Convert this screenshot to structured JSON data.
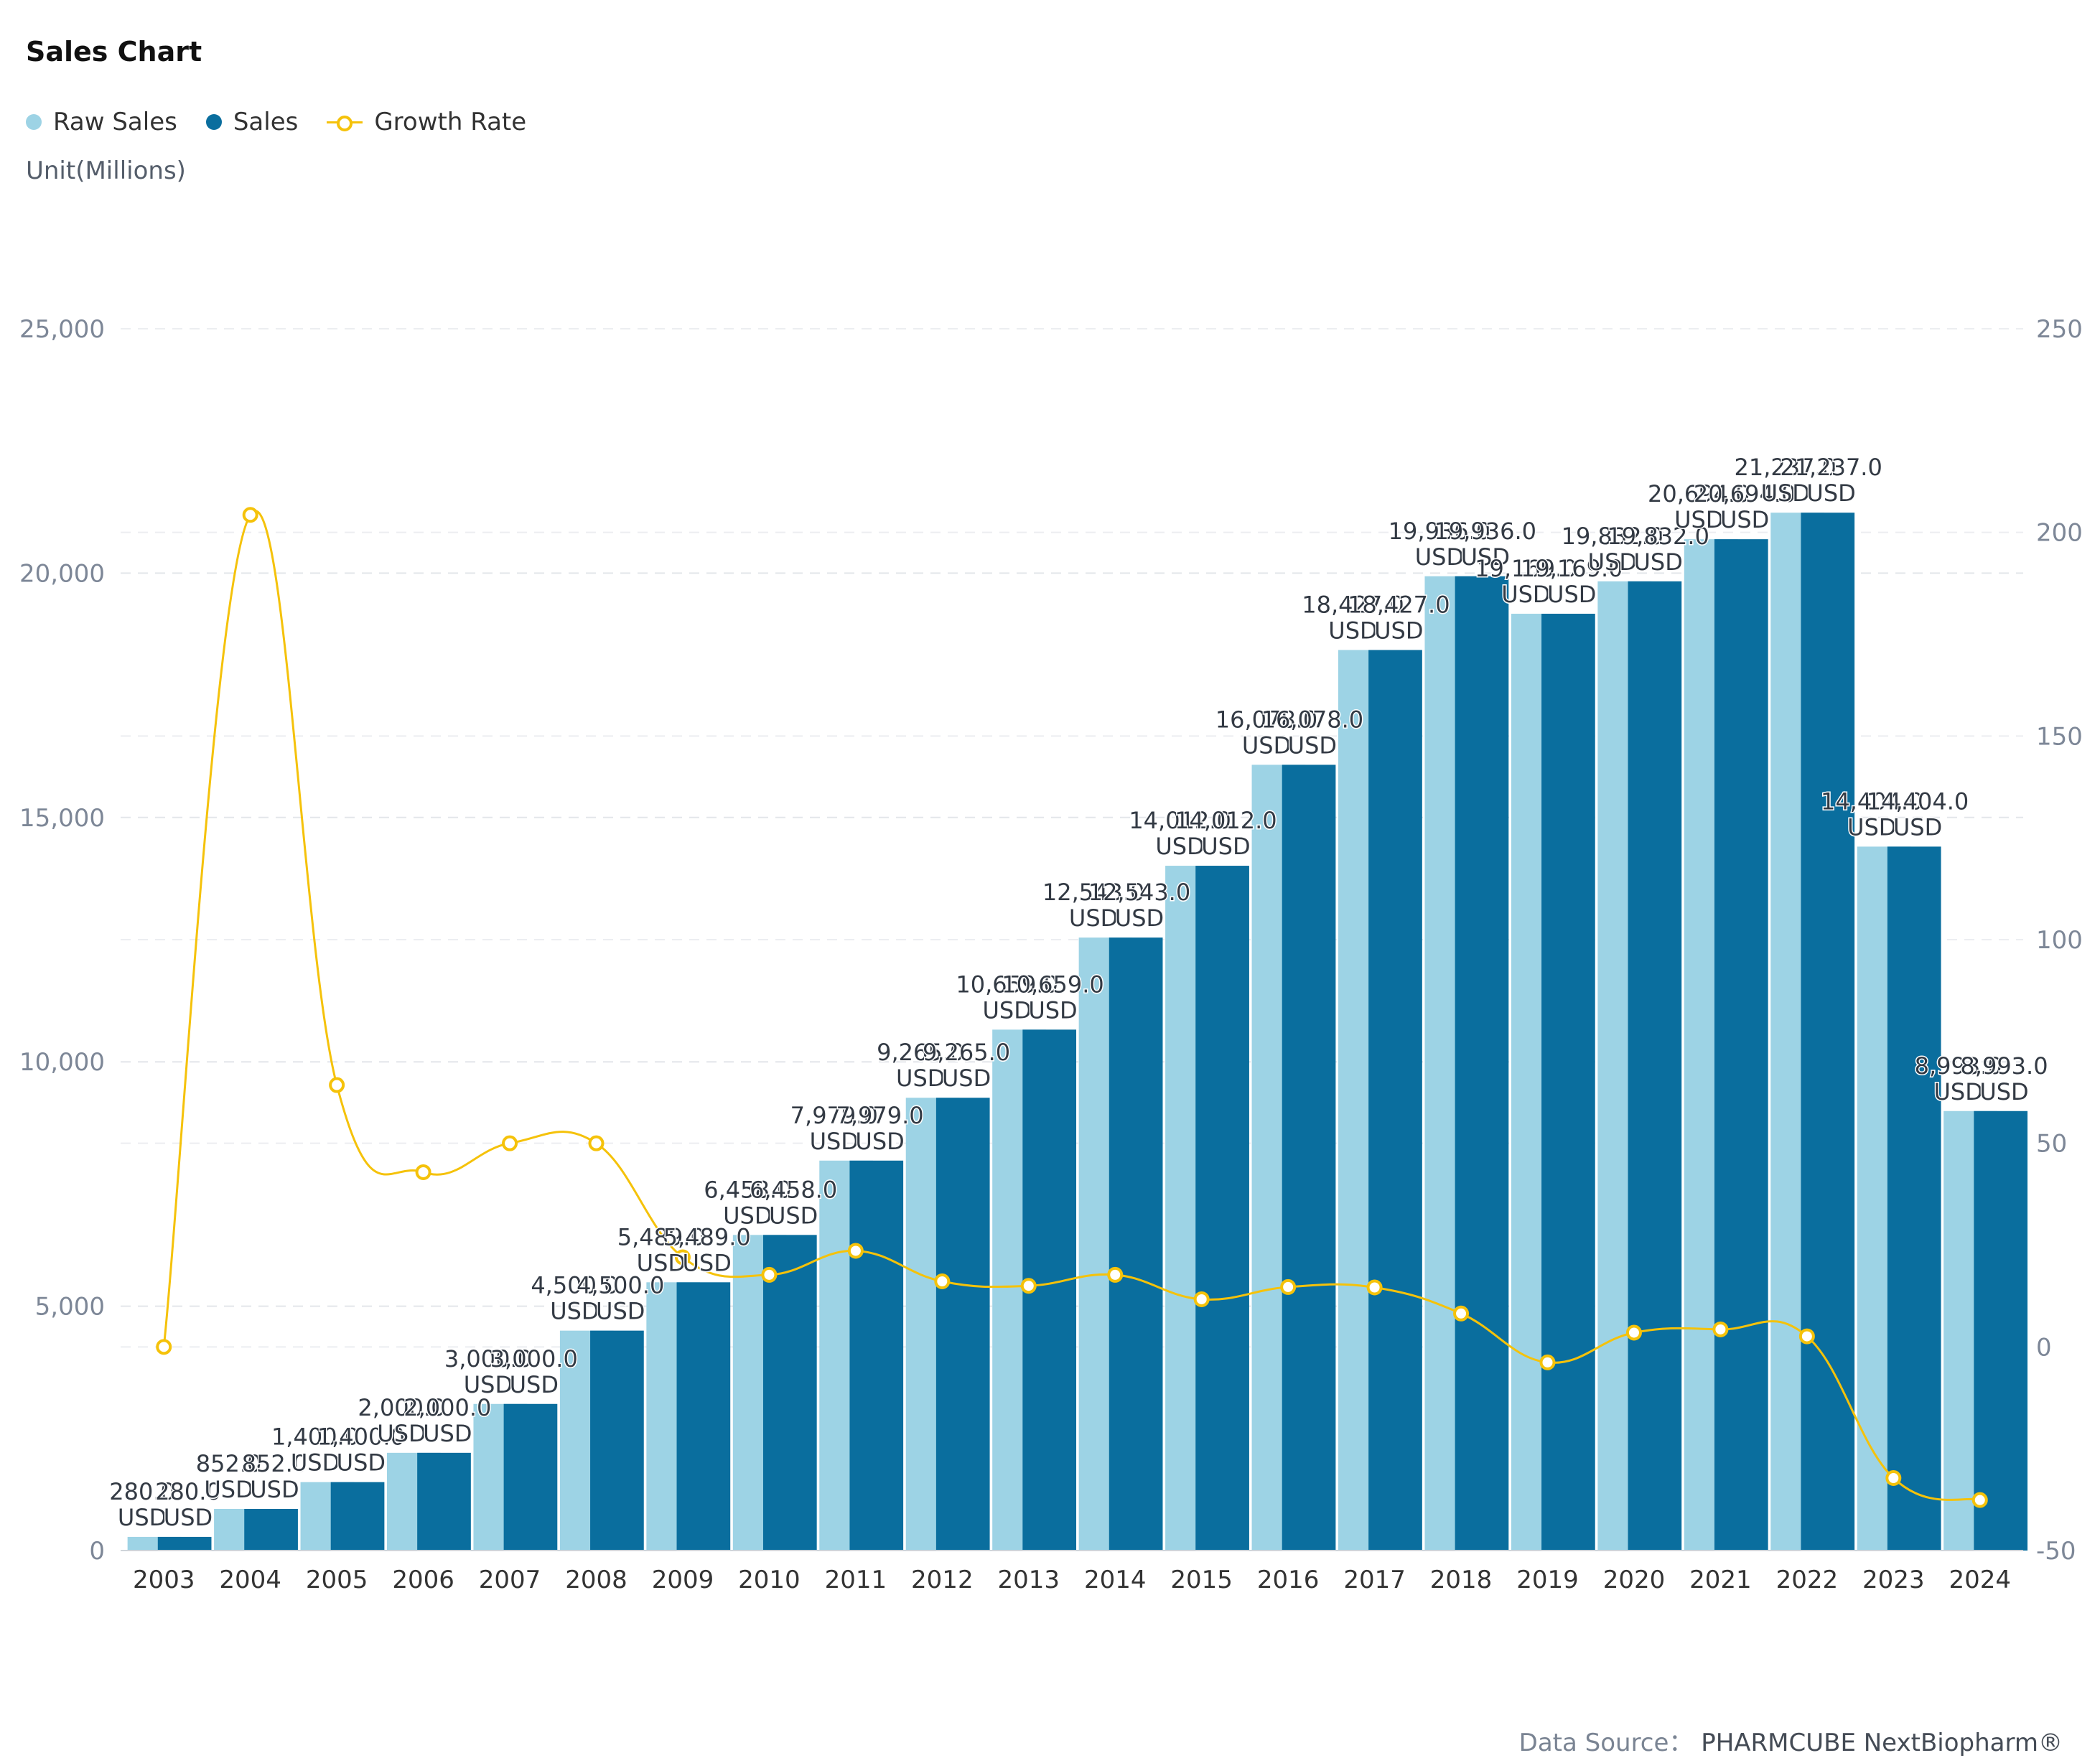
{
  "title": "Sales Chart",
  "unit_label": "Unit(Millions)",
  "legend": [
    {
      "label": "Raw Sales",
      "kind": "dot",
      "color": "#9dd3e5"
    },
    {
      "label": "Sales",
      "kind": "dot",
      "color": "#0a6e9e"
    },
    {
      "label": "Growth Rate",
      "kind": "line",
      "color": "#f5c20a"
    }
  ],
  "source": {
    "prefix": "Data Source：",
    "brand": "PHARMCUBE NextBiopharm®"
  },
  "chart_data": {
    "type": "bar",
    "categories": [
      "2003",
      "2004",
      "2005",
      "2006",
      "2007",
      "2008",
      "2009",
      "2010",
      "2011",
      "2012",
      "2013",
      "2014",
      "2015",
      "2016",
      "2017",
      "2018",
      "2019",
      "2020",
      "2021",
      "2022",
      "2023",
      "2024"
    ],
    "series": [
      {
        "name": "Raw Sales",
        "type": "bar",
        "axis": "left",
        "color": "#9dd3e5",
        "values": [
          280,
          852,
          1400,
          2000,
          3000,
          4500,
          5489,
          6458,
          7979,
          9265,
          10659,
          12543,
          14012,
          16078,
          18427,
          19936,
          19169,
          19832,
          20694,
          21237,
          14404,
          8993
        ],
        "labels": [
          "280.0 USD",
          "852.0 USD",
          "1,400.0 USD",
          "2,000.0 USD",
          "3,000.0 USD",
          "4,500.0 USD",
          "5,489.0 USD",
          "6,458.0 USD",
          "7,979.0 USD",
          "9,265.0 USD",
          "10,659.0 USD",
          "12,543.0 USD",
          "14,012.0 USD",
          "16,078.0 USD",
          "18,427.0 USD",
          "19,936.0 USD",
          "19,169.0 USD",
          "19,832.0 USD",
          "20,694.0 USD",
          "21,237.0 USD",
          "14,404.0 USD",
          "8,993.0 USD"
        ]
      },
      {
        "name": "Sales",
        "type": "bar",
        "axis": "left",
        "color": "#0a6e9e",
        "values": [
          280,
          852,
          1400,
          2000,
          3000,
          4500,
          5489,
          6458,
          7979,
          9265,
          10659,
          12543,
          14012,
          16078,
          18427,
          19936,
          19169,
          19832,
          20694,
          21237,
          14404,
          8993
        ],
        "labels": [
          "280.0 USD",
          "852.0 USD",
          "1,400.0 USD",
          "2,000.0 USD",
          "3,000.0 USD",
          "4,500.0 USD",
          "5,489.0 USD",
          "6,458.0 USD",
          "7,979.0 USD",
          "9,265.0 USD",
          "10,659.0 USD",
          "12,543.0 USD",
          "14,012.0 USD",
          "16,078.0 USD",
          "18,427.0 USD",
          "19,936.0 USD",
          "19,169.0 USD",
          "19,832.0 USD",
          "20,694.0 USD",
          "21,237.0 USD",
          "14,404.0 USD",
          "8,993.0 USD"
        ]
      },
      {
        "name": "Growth Rate",
        "type": "line",
        "axis": "right",
        "color": "#f5c20a",
        "values": [
          0,
          204.3,
          64.3,
          42.9,
          50.0,
          50.0,
          22.0,
          17.7,
          23.6,
          16.1,
          15.0,
          17.7,
          11.7,
          14.7,
          14.6,
          8.2,
          -3.8,
          3.5,
          4.3,
          2.6,
          -32.2,
          -37.6
        ]
      }
    ],
    "y_left": {
      "min": 0,
      "max": 25000,
      "ticks": [
        0,
        5000,
        10000,
        15000,
        20000,
        25000
      ],
      "tick_labels": [
        "0",
        "5,000",
        "10,000",
        "15,000",
        "20,000",
        "25,000"
      ]
    },
    "y_right": {
      "min": -50,
      "max": 250,
      "ticks": [
        -50,
        0,
        50,
        100,
        150,
        200,
        250
      ],
      "tick_labels": [
        "-50",
        "0",
        "50",
        "100",
        "150",
        "200",
        "250"
      ]
    },
    "grid": true,
    "legend_position": "top-left"
  }
}
